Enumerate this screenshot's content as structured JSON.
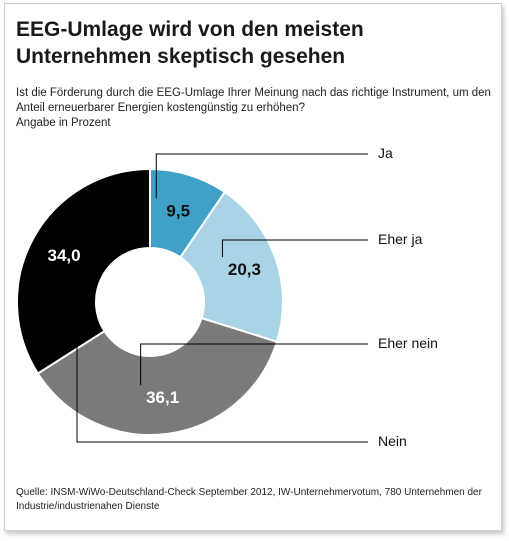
{
  "chart_data": {
    "type": "donut",
    "title": "EEG-Umlage wird von den meisten Unternehmen skeptisch gesehen",
    "subtitle": "Ist die Förderung durch die EEG-Umlage Ihrer Meinung nach das richtige Instrument, um den Anteil erneuerbarer Energien kostengünstig zu erhöhen?",
    "unit_label": "Angabe in Prozent",
    "slices": [
      {
        "label": "Ja",
        "value": 9.5,
        "value_label": "9,5",
        "color": "#3fa0c8",
        "text_color": "#111111"
      },
      {
        "label": "Eher ja",
        "value": 20.3,
        "value_label": "20,3",
        "color": "#a8d4e6",
        "text_color": "#111111"
      },
      {
        "label": "Eher nein",
        "value": 36.1,
        "value_label": "36,1",
        "color": "#7a7a7a",
        "text_color": "#ffffff"
      },
      {
        "label": "Nein",
        "value": 34.0,
        "value_label": "34,0",
        "color": "#000000",
        "text_color": "#ffffff"
      }
    ],
    "source": "Quelle: INSM-WiWo-Deutschland-Check September 2012, IW-Unternehmervotum, 780 Unternehmen der Industrie/industrienahen Dienste"
  }
}
